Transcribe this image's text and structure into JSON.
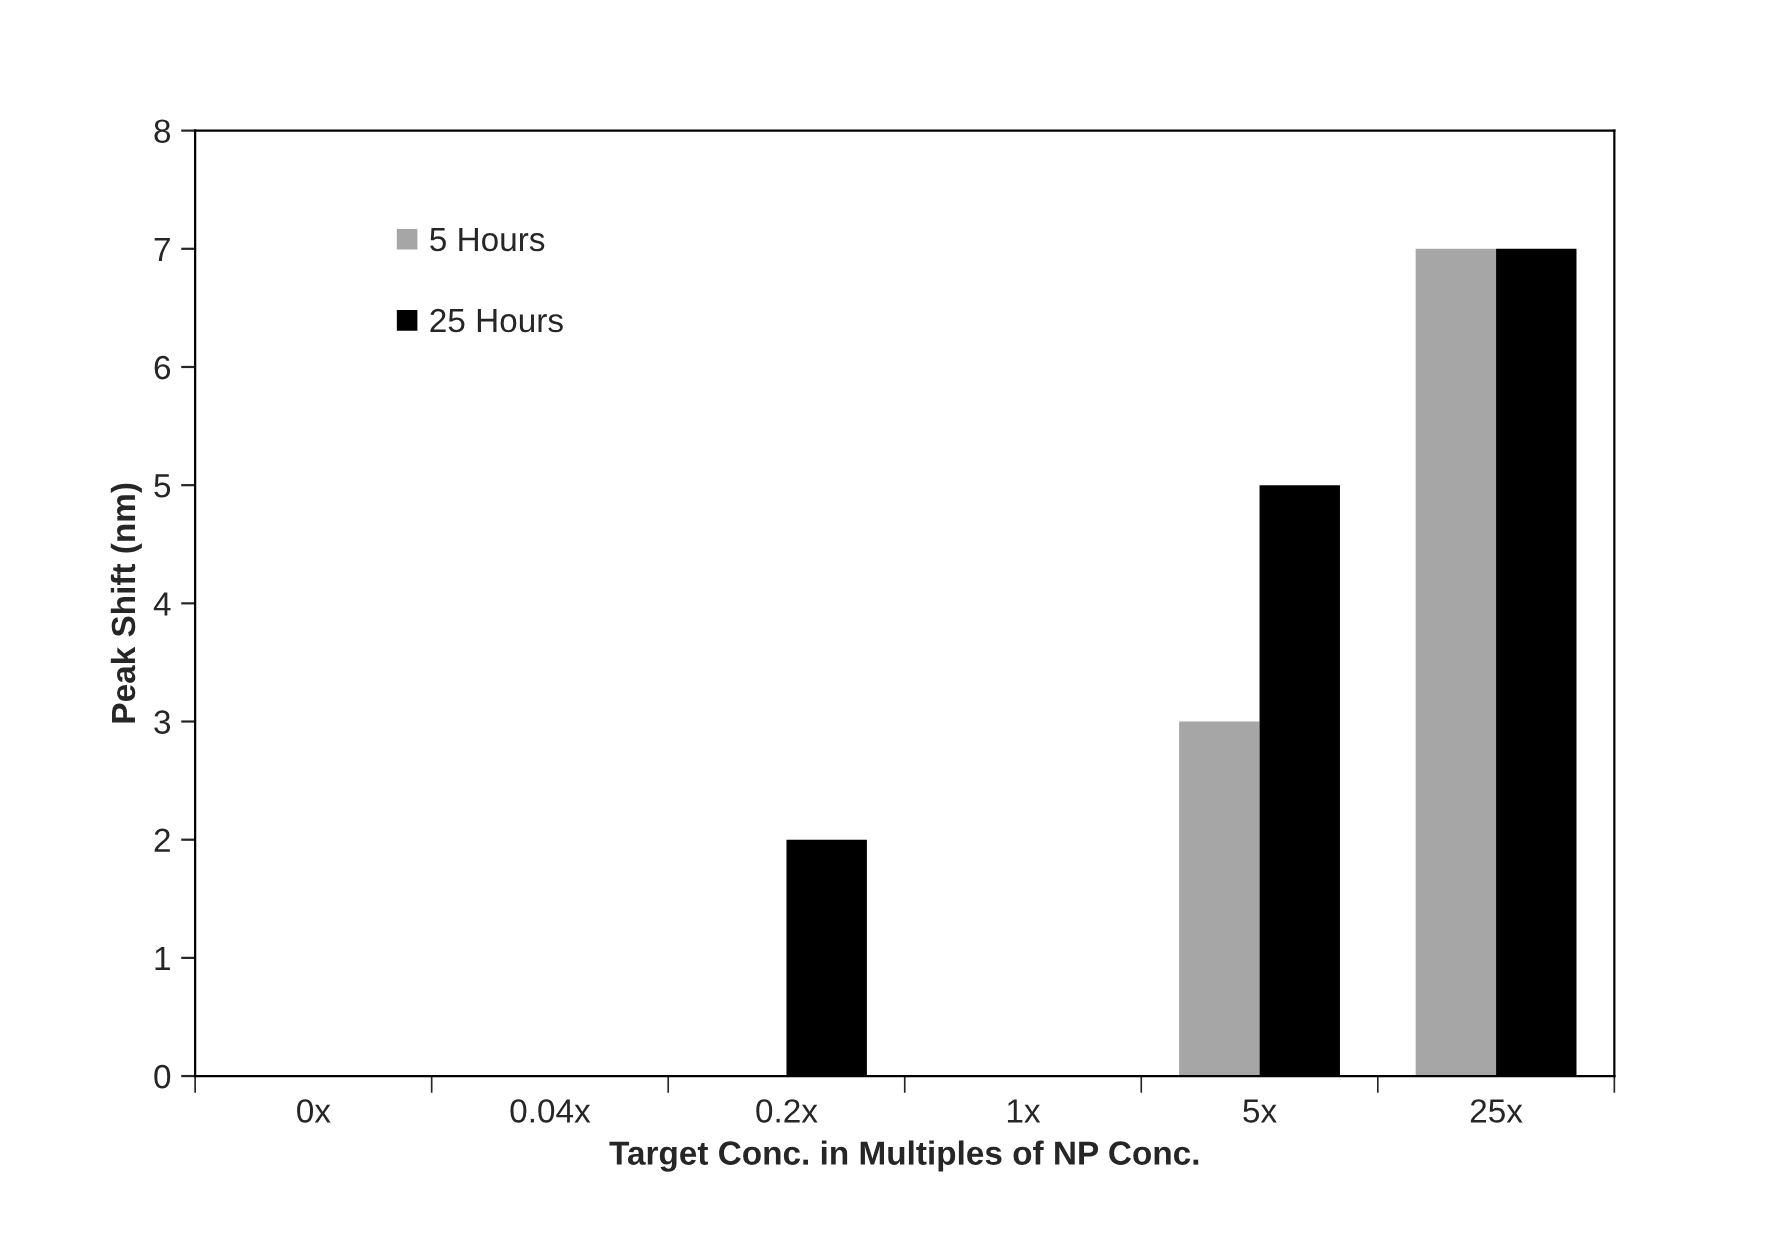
{
  "chart_data": {
    "type": "bar",
    "xlabel": "Target Conc. in Multiples of NP Conc.",
    "ylabel": "Peak Shift (nm)",
    "categories": [
      "0x",
      "0.04x",
      "0.2x",
      "1x",
      "5x",
      "25x"
    ],
    "series": [
      {
        "name": "5 Hours",
        "color": "#a6a6a6",
        "values": [
          0,
          0,
          0,
          0,
          3,
          7
        ]
      },
      {
        "name": "25 Hours",
        "color": "#000000",
        "values": [
          0,
          0,
          2,
          0,
          5,
          7
        ]
      }
    ],
    "ylim": [
      0,
      8
    ],
    "yticks": [
      0,
      1,
      2,
      3,
      4,
      5,
      6,
      7,
      8
    ],
    "grid": false,
    "legend": "top left"
  }
}
